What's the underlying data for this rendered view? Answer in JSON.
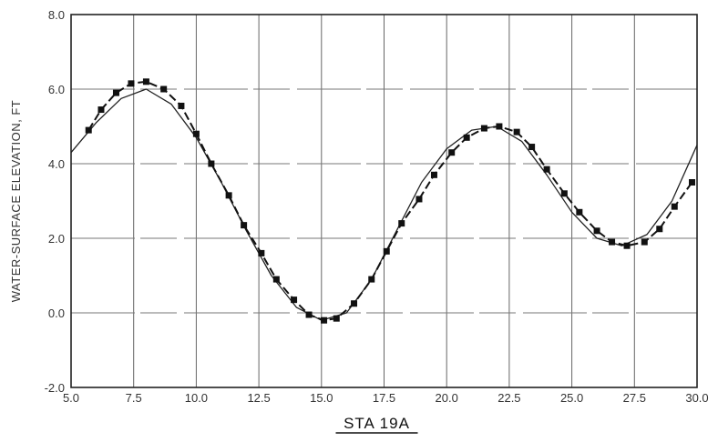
{
  "chart_data": {
    "type": "line",
    "title": "STA 19A",
    "xlabel": "",
    "ylabel": "WATER-SURFACE ELEVATION, FT",
    "xlim": [
      5.0,
      30.0
    ],
    "ylim": [
      -2.0,
      8.0
    ],
    "grid": true,
    "x_ticks": [
      "5.0",
      "7.5",
      "10.0",
      "12.5",
      "15.0",
      "17.5",
      "20.0",
      "22.5",
      "25.0",
      "27.5",
      "30.0"
    ],
    "y_ticks": [
      "-2.0",
      "0.0",
      "2.0",
      "4.0",
      "6.0",
      "8.0"
    ],
    "x_tick_values": [
      5.0,
      7.5,
      10.0,
      12.5,
      15.0,
      17.5,
      20.0,
      22.5,
      25.0,
      27.5,
      30.0
    ],
    "y_tick_values": [
      -2.0,
      0.0,
      2.0,
      4.0,
      6.0,
      8.0
    ],
    "series": [
      {
        "style": "solid",
        "x": [
          5.0,
          6.0,
          7.0,
          8.0,
          9.0,
          10.0,
          11.0,
          12.0,
          13.0,
          14.0,
          15.0,
          16.0,
          17.0,
          18.0,
          19.0,
          20.0,
          21.0,
          22.0,
          23.0,
          24.0,
          25.0,
          26.0,
          27.0,
          28.0,
          29.0,
          30.0
        ],
        "y": [
          4.3,
          5.1,
          5.75,
          6.0,
          5.6,
          4.7,
          3.5,
          2.2,
          1.0,
          0.15,
          -0.2,
          0.0,
          0.9,
          2.2,
          3.5,
          4.4,
          4.9,
          5.0,
          4.6,
          3.7,
          2.7,
          2.0,
          1.8,
          2.1,
          3.0,
          4.5
        ]
      },
      {
        "style": "dashed-markers",
        "x": [
          5.7,
          6.2,
          6.8,
          7.4,
          8.0,
          8.7,
          9.4,
          10.0,
          10.6,
          11.3,
          11.9,
          12.6,
          13.2,
          13.9,
          14.5,
          15.1,
          15.6,
          16.3,
          17.0,
          17.6,
          18.2,
          18.9,
          19.5,
          20.2,
          20.8,
          21.5,
          22.1,
          22.8,
          23.4,
          24.0,
          24.7,
          25.3,
          26.0,
          26.6,
          27.2,
          27.9,
          28.5,
          29.1,
          29.8
        ],
        "y": [
          4.9,
          5.45,
          5.9,
          6.15,
          6.2,
          6.0,
          5.55,
          4.8,
          4.0,
          3.15,
          2.35,
          1.6,
          0.9,
          0.35,
          -0.05,
          -0.2,
          -0.15,
          0.25,
          0.9,
          1.65,
          2.4,
          3.05,
          3.7,
          4.3,
          4.7,
          4.95,
          5.0,
          4.85,
          4.45,
          3.85,
          3.2,
          2.7,
          2.2,
          1.9,
          1.8,
          1.9,
          2.25,
          2.85,
          3.5
        ]
      }
    ]
  }
}
